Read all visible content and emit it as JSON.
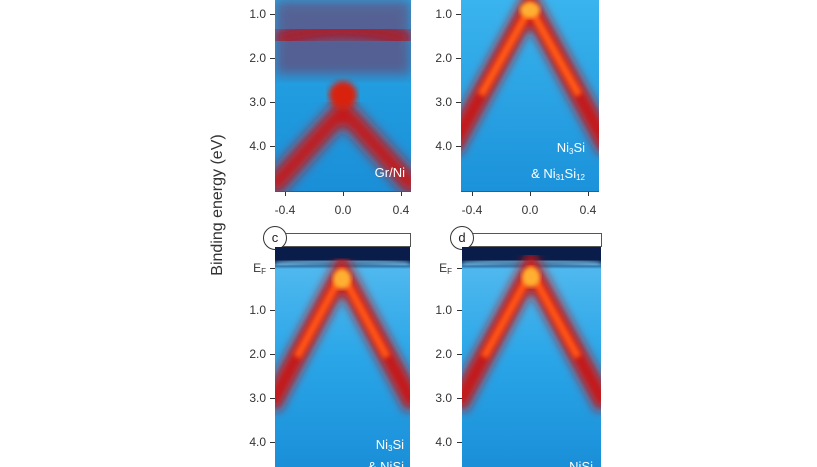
{
  "axis": {
    "ylabel": "Binding energy (eV)",
    "y_ticks_top": [
      "1.0",
      "2.0",
      "3.0",
      "4.0"
    ],
    "y_ticks_bottom_first": "E",
    "y_ticks_bottom_first_sub": "F",
    "y_ticks_bottom": [
      "1.0",
      "2.0",
      "3.0",
      "4.0"
    ],
    "x_ticks": [
      "-0.4",
      "0.0",
      "0.4"
    ]
  },
  "panels": {
    "a": {
      "label_line1": "Gr/Ni"
    },
    "b": {
      "label_line1_pre": "Ni",
      "label_line1_sub": "3",
      "label_line1_post": "Si",
      "label_line2_pre": "& Ni",
      "label_line2_sub1": "31",
      "label_line2_mid": "Si",
      "label_line2_sub2": "12"
    },
    "c": {
      "letter": "c",
      "label_line1_pre": "Ni",
      "label_line1_sub": "3",
      "label_line1_post": "Si",
      "label_line2_pre": "& Ni",
      "label_line2_sub1": "",
      "label_line2_mid": "Si",
      "label_line2_sub2": ""
    },
    "d": {
      "letter": "d",
      "label_line1_pre": "Ni",
      "label_line1_sub": "",
      "label_line1_post": "Si"
    }
  },
  "colors": {
    "background_blue": "#1d9fe0",
    "band_red": "#c81812",
    "band_core": "#ffb020",
    "fermi_dark": "#0a1d4a"
  }
}
